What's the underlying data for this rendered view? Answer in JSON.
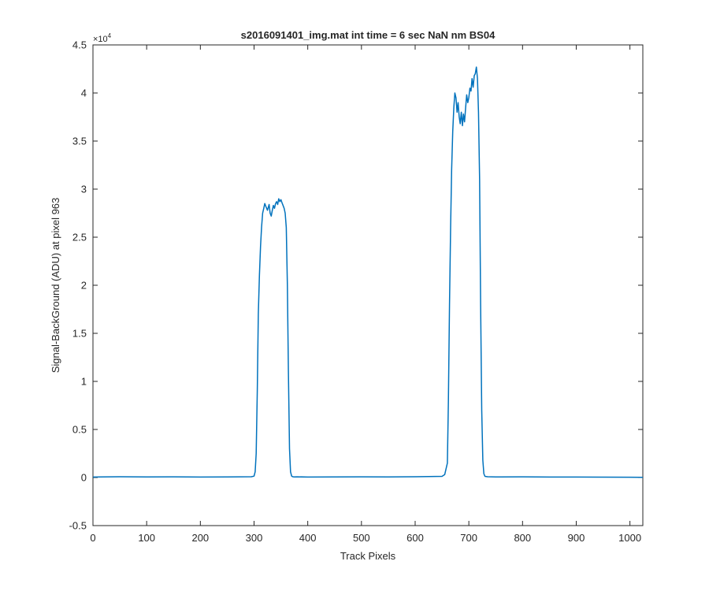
{
  "chart_data": {
    "type": "line",
    "title": "s2016091401_img.mat int time = 6 sec  NaN nm BS04",
    "xlabel": "Track Pixels",
    "ylabel": "Signal-BackGround (ADU) at pixel 963",
    "exponent_label": "×10",
    "exponent_power": "4",
    "xlim": [
      0,
      1024
    ],
    "ylim": [
      -5000,
      45000
    ],
    "xticks": [
      0,
      100,
      200,
      300,
      400,
      500,
      600,
      700,
      800,
      900,
      1000
    ],
    "xtick_labels": [
      "0",
      "100",
      "200",
      "300",
      "400",
      "500",
      "600",
      "700",
      "800",
      "900",
      "1000"
    ],
    "yticks": [
      -5000,
      0,
      5000,
      10000,
      15000,
      20000,
      25000,
      30000,
      35000,
      40000,
      45000
    ],
    "ytick_labels": [
      "-0.5",
      "0",
      "0.5",
      "1",
      "1.5",
      "2",
      "2.5",
      "3",
      "3.5",
      "4",
      "4.5"
    ],
    "grid": false,
    "series": [
      {
        "color": "#0072BD",
        "x": [
          0,
          50,
          100,
          150,
          200,
          250,
          295,
          300,
          302,
          304,
          306,
          308,
          310,
          312,
          314,
          316,
          318,
          320,
          322,
          325,
          328,
          330,
          332,
          334,
          336,
          338,
          340,
          342,
          344,
          346,
          348,
          350,
          352,
          354,
          356,
          358,
          360,
          362,
          364,
          366,
          368,
          370,
          372,
          375,
          380,
          400,
          450,
          500,
          550,
          600,
          650,
          655,
          660,
          662,
          664,
          666,
          668,
          670,
          672,
          674,
          676,
          678,
          680,
          682,
          684,
          686,
          688,
          690,
          692,
          694,
          696,
          698,
          700,
          702,
          704,
          706,
          708,
          710,
          712,
          714,
          716,
          718,
          720,
          722,
          724,
          726,
          728,
          730,
          735,
          750,
          800,
          850,
          900,
          950,
          1000,
          1024
        ],
        "y": [
          50,
          80,
          60,
          70,
          50,
          60,
          80,
          150,
          600,
          2500,
          9000,
          17000,
          21000,
          24000,
          26000,
          27500,
          28000,
          28500,
          28200,
          27800,
          28400,
          27500,
          27200,
          27800,
          28300,
          28000,
          28500,
          28700,
          28400,
          29000,
          28700,
          28900,
          28600,
          28300,
          28000,
          27500,
          26000,
          20000,
          11000,
          3000,
          600,
          150,
          80,
          60,
          70,
          50,
          60,
          70,
          60,
          80,
          120,
          300,
          1500,
          8000,
          18000,
          26000,
          32000,
          36000,
          38500,
          40000,
          39500,
          38000,
          39000,
          37500,
          36800,
          38000,
          36600,
          37800,
          37000,
          38500,
          39800,
          39000,
          39500,
          40500,
          40200,
          41500,
          40600,
          41800,
          42000,
          42700,
          41500,
          38000,
          31000,
          18000,
          7000,
          1800,
          400,
          120,
          80,
          60,
          70,
          50,
          50,
          40,
          30,
          20
        ]
      }
    ]
  }
}
